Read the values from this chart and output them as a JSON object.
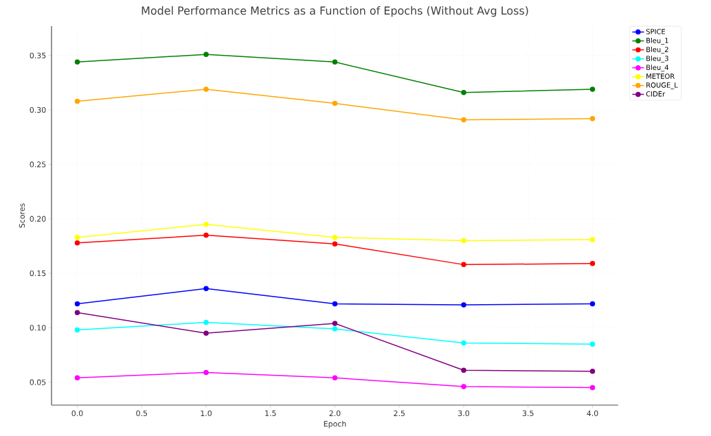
{
  "chart_data": {
    "type": "line",
    "title": "Model Performance Metrics as a Function of Epochs (Without Avg Loss)",
    "xlabel": "Epoch",
    "ylabel": "Scores",
    "x": [
      0,
      1,
      2,
      3,
      4
    ],
    "series": [
      {
        "name": "SPICE",
        "color": "#0000ff",
        "values": [
          0.122,
          0.136,
          0.122,
          0.121,
          0.122
        ]
      },
      {
        "name": "Bleu_1",
        "color": "#008000",
        "values": [
          0.344,
          0.351,
          0.344,
          0.316,
          0.319
        ]
      },
      {
        "name": "Bleu_2",
        "color": "#ff0000",
        "values": [
          0.178,
          0.185,
          0.177,
          0.158,
          0.159
        ]
      },
      {
        "name": "Bleu_3",
        "color": "#00ffff",
        "values": [
          0.098,
          0.105,
          0.099,
          0.086,
          0.085
        ]
      },
      {
        "name": "Bleu_4",
        "color": "#ff00ff",
        "values": [
          0.054,
          0.059,
          0.054,
          0.046,
          0.045
        ]
      },
      {
        "name": "METEOR",
        "color": "#ffff00",
        "values": [
          0.183,
          0.195,
          0.183,
          0.18,
          0.181
        ]
      },
      {
        "name": "ROUGE_L",
        "color": "#ffa500",
        "values": [
          0.308,
          0.319,
          0.306,
          0.291,
          0.292
        ]
      },
      {
        "name": "CIDEr",
        "color": "#800080",
        "values": [
          0.114,
          0.095,
          0.104,
          0.061,
          0.06
        ]
      }
    ],
    "xlim": [
      -0.2,
      4.2
    ],
    "ylim": [
      0.029,
      0.377
    ],
    "xticks": [
      {
        "value": 0,
        "label": "0.0"
      },
      {
        "value": 0.5,
        "label": "0.5"
      },
      {
        "value": 1,
        "label": "1.0"
      },
      {
        "value": 1.5,
        "label": "1.5"
      },
      {
        "value": 2,
        "label": "2.0"
      },
      {
        "value": 2.5,
        "label": "2.5"
      },
      {
        "value": 3,
        "label": "3.0"
      },
      {
        "value": 3.5,
        "label": "3.5"
      },
      {
        "value": 4,
        "label": "4.0"
      }
    ],
    "yticks": [
      {
        "value": 0.05,
        "label": "0.05"
      },
      {
        "value": 0.1,
        "label": "0.10"
      },
      {
        "value": 0.15,
        "label": "0.15"
      },
      {
        "value": 0.2,
        "label": "0.20"
      },
      {
        "value": 0.25,
        "label": "0.25"
      },
      {
        "value": 0.3,
        "label": "0.30"
      },
      {
        "value": 0.35,
        "label": "0.35"
      }
    ],
    "grid": true,
    "legend": "right",
    "marker": "circle",
    "line_style": "solid"
  }
}
